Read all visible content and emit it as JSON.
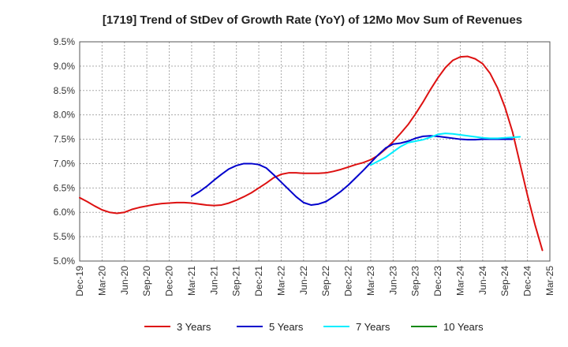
{
  "chart_data": {
    "type": "line",
    "title": "[1719]  Trend of StDev of Growth Rate (YoY) of 12Mo Mov Sum of Revenues",
    "xlabel": "",
    "ylabel": "",
    "ylim": [
      5.0,
      9.5
    ],
    "y_ticks": [
      "5.0%",
      "5.5%",
      "6.0%",
      "6.5%",
      "7.0%",
      "7.5%",
      "8.0%",
      "8.5%",
      "9.0%",
      "9.5%"
    ],
    "y_tick_values": [
      5.0,
      5.5,
      6.0,
      6.5,
      7.0,
      7.5,
      8.0,
      8.5,
      9.0,
      9.5
    ],
    "x_ticks": [
      "Dec-19",
      "Mar-20",
      "Jun-20",
      "Sep-20",
      "Dec-20",
      "Mar-21",
      "Jun-21",
      "Sep-21",
      "Dec-21",
      "Mar-22",
      "Jun-22",
      "Sep-22",
      "Dec-22",
      "Mar-23",
      "Jun-23",
      "Sep-23",
      "Dec-23",
      "Mar-24",
      "Jun-24",
      "Sep-24",
      "Dec-24",
      "Mar-25"
    ],
    "x_start": "Dec-19",
    "month_count": 63,
    "grid": true,
    "legend_position": "bottom",
    "series": [
      {
        "name": "3 Years",
        "color": "#dd1111",
        "start_index": 0,
        "values": [
          6.3,
          6.22,
          6.13,
          6.05,
          6.0,
          5.98,
          6.0,
          6.06,
          6.1,
          6.13,
          6.16,
          6.18,
          6.19,
          6.2,
          6.2,
          6.19,
          6.17,
          6.15,
          6.14,
          6.15,
          6.19,
          6.25,
          6.32,
          6.4,
          6.5,
          6.6,
          6.71,
          6.78,
          6.81,
          6.81,
          6.8,
          6.8,
          6.8,
          6.81,
          6.84,
          6.88,
          6.93,
          6.98,
          7.02,
          7.08,
          7.17,
          7.3,
          7.45,
          7.62,
          7.8,
          8.02,
          8.26,
          8.52,
          8.76,
          8.97,
          9.12,
          9.19,
          9.2,
          9.15,
          9.05,
          8.85,
          8.55,
          8.15,
          7.65,
          7.0,
          6.35,
          5.75,
          5.22
        ]
      },
      {
        "name": "5 Years",
        "color": "#0000cc",
        "start_index": 15,
        "values": [
          6.33,
          6.42,
          6.53,
          6.66,
          6.78,
          6.89,
          6.96,
          7.0,
          7.0,
          6.98,
          6.91,
          6.77,
          6.62,
          6.47,
          6.32,
          6.2,
          6.15,
          6.17,
          6.22,
          6.32,
          6.43,
          6.56,
          6.71,
          6.86,
          7.02,
          7.18,
          7.32,
          7.4,
          7.42,
          7.46,
          7.52,
          7.56,
          7.57,
          7.56,
          7.54,
          7.52,
          7.5,
          7.49,
          7.49,
          7.5,
          7.5,
          7.5,
          7.5,
          7.5
        ]
      },
      {
        "name": "7 Years",
        "color": "#00eeff",
        "start_index": 39,
        "values": [
          6.97,
          7.05,
          7.13,
          7.24,
          7.35,
          7.43,
          7.46,
          7.49,
          7.54,
          7.6,
          7.62,
          7.61,
          7.59,
          7.57,
          7.55,
          7.53,
          7.52,
          7.52,
          7.53,
          7.54,
          7.55
        ]
      },
      {
        "name": "10 Years",
        "color": "#118811",
        "start_index": 0,
        "values": []
      }
    ]
  }
}
